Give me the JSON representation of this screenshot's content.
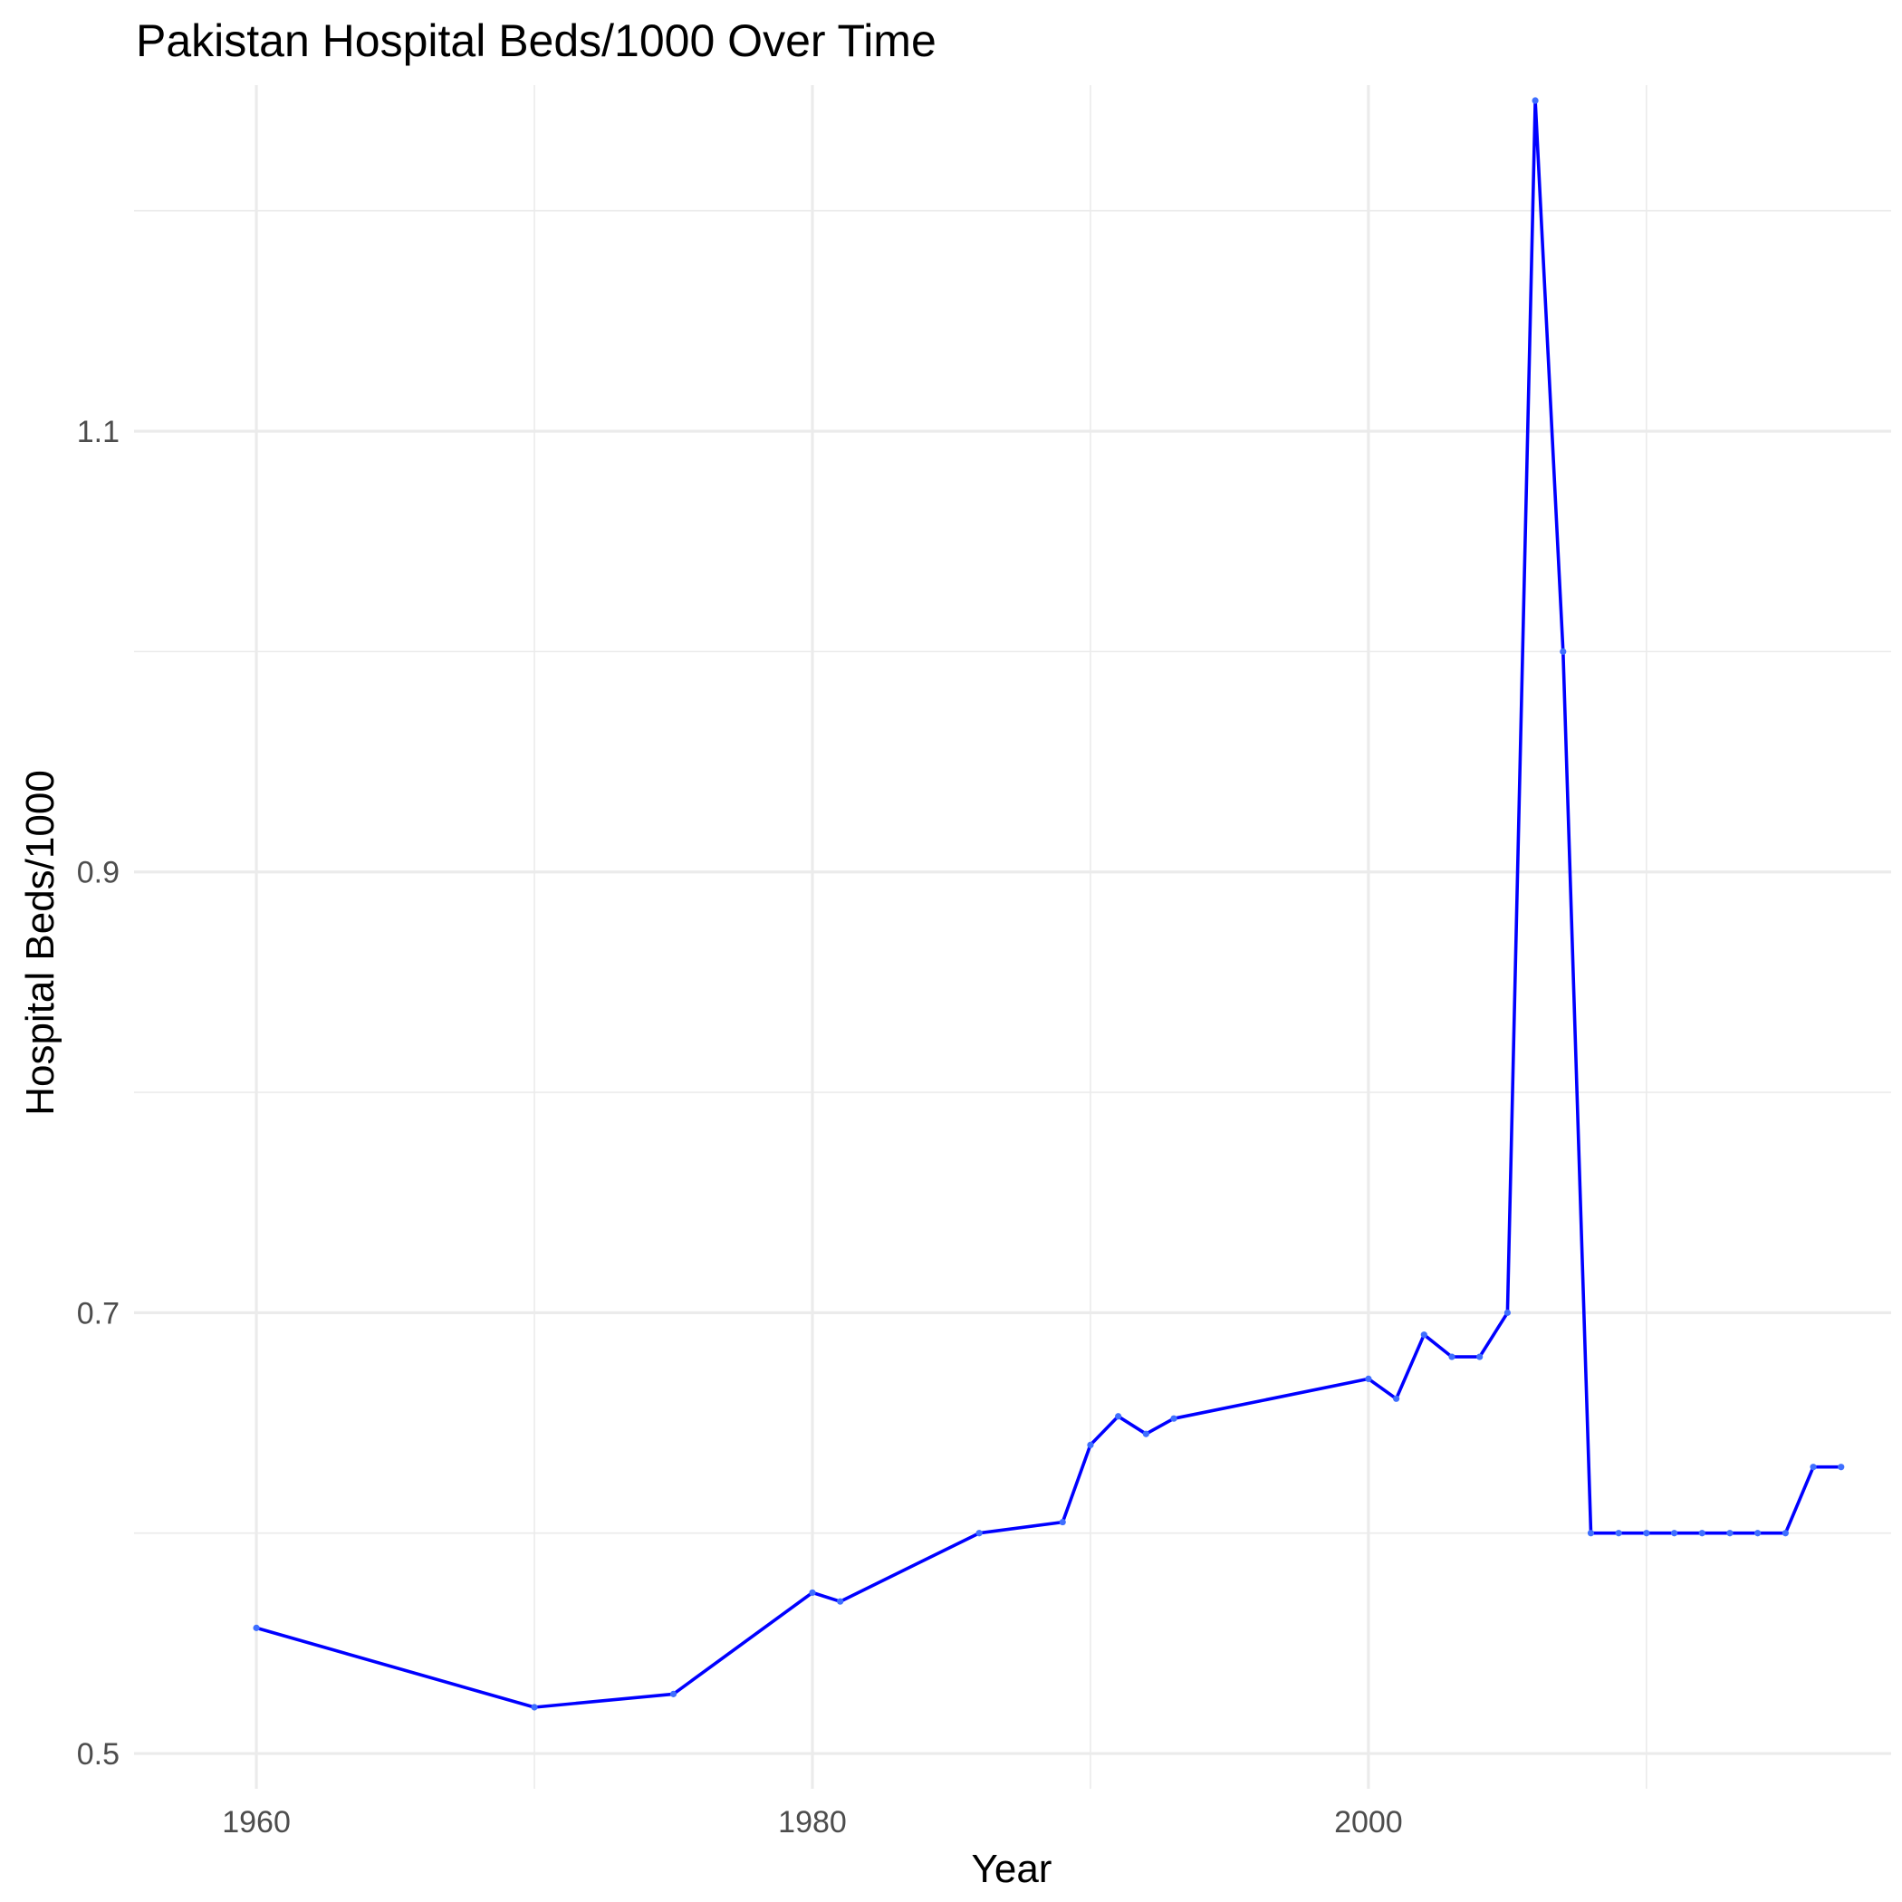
{
  "chart_data": {
    "type": "line",
    "title": "Pakistan Hospital Beds/1000 Over Time",
    "xlabel": "Year",
    "ylabel": "Hospital Beds/1000",
    "xlim": [
      1955.6,
      2018.8
    ],
    "ylim": [
      0.484,
      1.257
    ],
    "x_ticks": [
      1960,
      1980,
      2000
    ],
    "x_tick_labels": [
      "1960",
      "1980",
      "2000"
    ],
    "x_minor_ticks": [
      1970,
      1990,
      2010
    ],
    "y_ticks": [
      0.5,
      0.7,
      0.9,
      1.1
    ],
    "y_tick_labels": [
      "0.5",
      "0.7",
      "0.9",
      "1.1"
    ],
    "y_minor_ticks": [
      0.6,
      0.8,
      1.0,
      1.2
    ],
    "grid": true,
    "legend": "none",
    "series": [
      {
        "color": "#0000ff",
        "x": [
          1960,
          1970,
          1975,
          1980,
          1981,
          1986,
          1989,
          1990,
          1991,
          1992,
          1993,
          2000,
          2001,
          2002,
          2003,
          2004,
          2005,
          2006,
          2007,
          2008,
          2009,
          2010,
          2011,
          2012,
          2013,
          2014,
          2015,
          2016,
          2017
        ],
        "y": [
          0.557,
          0.521,
          0.527,
          0.573,
          0.569,
          0.6,
          0.605,
          0.64,
          0.653,
          0.645,
          0.652,
          0.67,
          0.661,
          0.69,
          0.68,
          0.68,
          0.7,
          1.25,
          1.0,
          0.6,
          0.6,
          0.6,
          0.6,
          0.6,
          0.6,
          0.6,
          0.6,
          0.63,
          0.63
        ]
      }
    ]
  }
}
